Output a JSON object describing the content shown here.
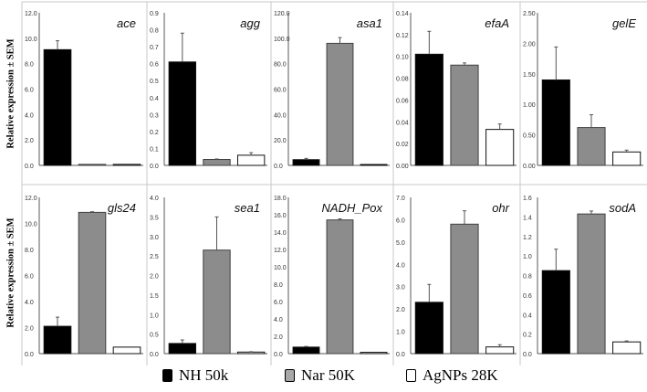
{
  "ylabel": "Relative expression ± SEM",
  "legend": [
    {
      "label": "NH 50k",
      "color": "#000000"
    },
    {
      "label": "Nar 50K",
      "color": "#8c8c8c"
    },
    {
      "label": "AgNPs 28K",
      "color": "#ffffff"
    }
  ],
  "chart_data": [
    {
      "type": "bar",
      "title": "ace",
      "categories": [
        "NH 50k",
        "Nar 50K",
        "AgNPs 28K"
      ],
      "values": [
        9.1,
        0.08,
        0.08
      ],
      "errors": [
        0.7,
        0,
        0
      ],
      "ylim": [
        0,
        12
      ],
      "ticks": [
        "0.0",
        "2.0",
        "4.0",
        "6.0",
        "8.0",
        "10.0",
        "12.0"
      ],
      "tick_values": [
        0,
        2,
        4,
        6,
        8,
        10,
        12
      ]
    },
    {
      "type": "bar",
      "title": "agg",
      "categories": [
        "NH 50k",
        "Nar 50K",
        "AgNPs 28K"
      ],
      "values": [
        0.61,
        0.035,
        0.06
      ],
      "errors": [
        0.17,
        0.003,
        0.015
      ],
      "ylim": [
        0,
        0.9
      ],
      "ticks": [
        "0.0",
        "0.1",
        "0.2",
        "0.3",
        "0.4",
        "0.5",
        "0.6",
        "0.7",
        "0.8",
        "0.9"
      ],
      "tick_values": [
        0,
        0.1,
        0.2,
        0.3,
        0.4,
        0.5,
        0.6,
        0.7,
        0.8,
        0.9
      ]
    },
    {
      "type": "bar",
      "title": "asa1",
      "categories": [
        "NH 50k",
        "Nar 50K",
        "AgNPs 28K"
      ],
      "values": [
        4.5,
        96,
        0.3
      ],
      "errors": [
        1.0,
        4.5,
        0
      ],
      "ylim": [
        0,
        120
      ],
      "ticks": [
        "0.0",
        "20.0",
        "40.0",
        "60.0",
        "80.0",
        "100.0",
        "120.0"
      ],
      "tick_values": [
        0,
        20,
        40,
        60,
        80,
        100,
        120
      ]
    },
    {
      "type": "bar",
      "title": "efaA",
      "categories": [
        "NH 50k",
        "Nar 50K",
        "AgNPs 28K"
      ],
      "values": [
        0.102,
        0.092,
        0.033
      ],
      "errors": [
        0.021,
        0.002,
        0.005
      ],
      "ylim": [
        0,
        0.14
      ],
      "ticks": [
        "0.00",
        "0.02",
        "0.04",
        "0.06",
        "0.08",
        "0.10",
        "0.12",
        "0.14"
      ],
      "tick_values": [
        0,
        0.02,
        0.04,
        0.06,
        0.08,
        0.1,
        0.12,
        0.14
      ]
    },
    {
      "type": "bar",
      "title": "gelE",
      "categories": [
        "NH 50k",
        "Nar 50K",
        "AgNPs 28K"
      ],
      "values": [
        1.4,
        0.62,
        0.22
      ],
      "errors": [
        0.54,
        0.21,
        0.03
      ],
      "ylim": [
        0,
        2.5
      ],
      "ticks": [
        "0.00",
        "0.50",
        "1.00",
        "1.50",
        "2.00",
        "2.50"
      ],
      "tick_values": [
        0,
        0.5,
        1,
        1.5,
        2,
        2.5
      ]
    },
    {
      "type": "bar",
      "title": "gls24",
      "categories": [
        "NH 50k",
        "Nar 50K",
        "AgNPs 28K"
      ],
      "values": [
        2.1,
        10.85,
        0.5
      ],
      "errors": [
        0.7,
        0.05,
        0
      ],
      "ylim": [
        0,
        12
      ],
      "ticks": [
        "0.0",
        "2.0",
        "4.0",
        "6.0",
        "8.0",
        "10.0",
        "12.0"
      ],
      "tick_values": [
        0,
        2,
        4,
        6,
        8,
        10,
        12
      ]
    },
    {
      "type": "bar",
      "title": "sea1",
      "categories": [
        "NH 50k",
        "Nar 50K",
        "AgNPs 28K"
      ],
      "values": [
        0.26,
        2.65,
        0.04
      ],
      "errors": [
        0.09,
        0.85,
        0.01
      ],
      "ylim": [
        0,
        4
      ],
      "ticks": [
        "0.0",
        "0.5",
        "1.0",
        "1.5",
        "2.0",
        "2.5",
        "3.0",
        "3.5",
        "4.0"
      ],
      "tick_values": [
        0,
        0.5,
        1,
        1.5,
        2,
        2.5,
        3,
        3.5,
        4
      ]
    },
    {
      "type": "bar",
      "title": "NADH_Pox",
      "categories": [
        "NH 50k",
        "Nar 50K",
        "AgNPs 28K"
      ],
      "values": [
        0.75,
        15.4,
        0.15
      ],
      "errors": [
        0.08,
        0.12,
        0
      ],
      "ylim": [
        0,
        18
      ],
      "ticks": [
        "0.0",
        "2.0",
        "4.0",
        "6.0",
        "8.0",
        "10.0",
        "12.0",
        "14.0",
        "16.0",
        "18.0"
      ],
      "tick_values": [
        0,
        2,
        4,
        6,
        8,
        10,
        12,
        14,
        16,
        18
      ]
    },
    {
      "type": "bar",
      "title": "ohr",
      "categories": [
        "NH 50k",
        "Nar 50K",
        "AgNPs 28K"
      ],
      "values": [
        2.3,
        5.8,
        0.3
      ],
      "errors": [
        0.8,
        0.6,
        0.1
      ],
      "ylim": [
        0,
        7
      ],
      "ticks": [
        "0.0",
        "1.0",
        "2.0",
        "3.0",
        "4.0",
        "5.0",
        "6.0",
        "7.0"
      ],
      "tick_values": [
        0,
        1,
        2,
        3,
        4,
        5,
        6,
        7
      ]
    },
    {
      "type": "bar",
      "title": "sodA",
      "categories": [
        "NH 50k",
        "Nar 50K",
        "AgNPs 28K"
      ],
      "values": [
        0.85,
        1.43,
        0.12
      ],
      "errors": [
        0.22,
        0.03,
        0.01
      ],
      "ylim": [
        0,
        1.6
      ],
      "ticks": [
        "0.0",
        "0.2",
        "0.4",
        "0.6",
        "0.8",
        "1.0",
        "1.2",
        "1.4",
        "1.6"
      ],
      "tick_values": [
        0,
        0.2,
        0.4,
        0.6,
        0.8,
        1.0,
        1.2,
        1.4,
        1.6
      ]
    }
  ]
}
